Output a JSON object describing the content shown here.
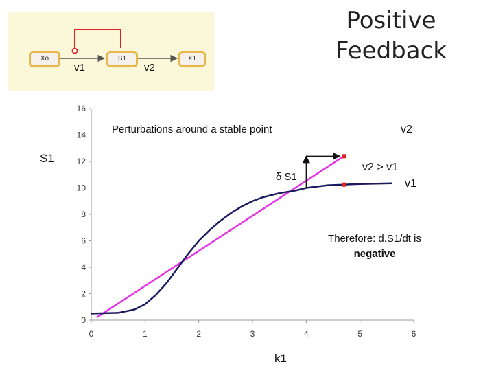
{
  "title": "Positive Feedback",
  "schema": {
    "nodes": [
      "Xo",
      "S1",
      "X1"
    ],
    "rate_labels": [
      "v1",
      "v2"
    ],
    "colors": {
      "node_border": "#e8b64a",
      "feedback": "#dd2222",
      "background": "#fbf8d9"
    }
  },
  "chart_data": {
    "type": "line",
    "xlabel": "k1",
    "ylabel": "S1",
    "xlim": [
      0,
      6
    ],
    "ylim": [
      0,
      16
    ],
    "xticks": [
      0,
      1,
      2,
      3,
      4,
      5,
      6
    ],
    "yticks": [
      0,
      2,
      4,
      6,
      8,
      10,
      12,
      14,
      16
    ],
    "series": [
      {
        "name": "v2",
        "color": "#e632e6",
        "x": [
          0.1,
          4.7
        ],
        "y": [
          0.2,
          12.4
        ]
      },
      {
        "name": "v1",
        "color": "#1a1a5e",
        "x": [
          0,
          0.5,
          0.8,
          1.0,
          1.2,
          1.4,
          1.6,
          1.8,
          2.0,
          2.2,
          2.4,
          2.6,
          2.8,
          3.0,
          3.2,
          3.5,
          3.8,
          4.0,
          4.4,
          4.7,
          5.0,
          5.6
        ],
        "y": [
          0.5,
          0.55,
          0.8,
          1.2,
          1.9,
          2.8,
          3.9,
          5.0,
          6.0,
          6.8,
          7.5,
          8.1,
          8.6,
          9.0,
          9.3,
          9.6,
          9.8,
          10.0,
          10.2,
          10.25,
          10.3,
          10.35
        ]
      }
    ],
    "points": [
      {
        "x": 4.7,
        "y": 12.4,
        "color": "#dd2222"
      },
      {
        "x": 4.7,
        "y": 10.25,
        "color": "#dd2222"
      }
    ],
    "perturbation_arrow": {
      "x_from": 4.0,
      "x_to": 4.7,
      "y_from": 10.0,
      "y_to": 12.4
    },
    "annotations": {
      "perturbations": "Perturbations around a stable point",
      "delta_s1": "δ S1",
      "v2": "v2",
      "v2_gt_v1": "v2 > v1",
      "v1": "v1",
      "therefore": "Therefore: d.S1/dt is",
      "negative": "negative"
    }
  }
}
